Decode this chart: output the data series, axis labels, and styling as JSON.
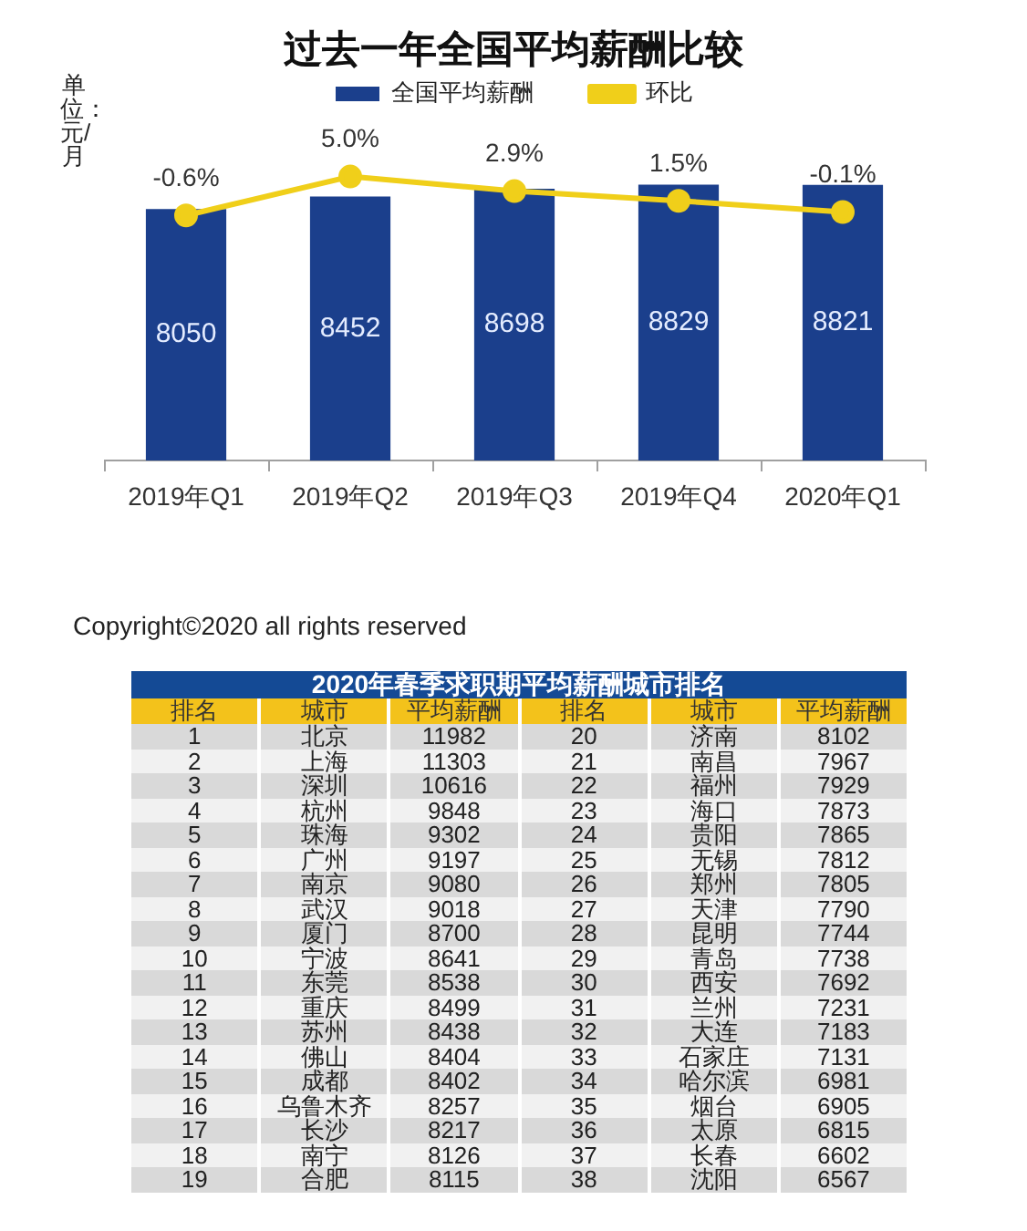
{
  "chart_data": [
    {
      "type": "bar",
      "title": "过去一年全国平均薪酬比较",
      "ylabel": "单位：元/月",
      "categories": [
        "2019年Q1",
        "2019年Q2",
        "2019年Q3",
        "2019年Q4",
        "2020年Q1"
      ],
      "series": [
        {
          "name": "全国平均薪酬",
          "type": "bar",
          "color": "#1b3f8c",
          "values": [
            8050,
            8452,
            8698,
            8829,
            8821
          ],
          "value_labels": [
            "8050",
            "8452",
            "8698",
            "8829",
            "8821"
          ]
        },
        {
          "name": "环比",
          "type": "line",
          "axis": "y2",
          "color": "#f0cf1a",
          "values": [
            -0.6,
            5.0,
            2.9,
            1.5,
            -0.1
          ],
          "value_labels": [
            "-0.6%",
            "5.0%",
            "2.9%",
            "1.5%",
            "-0.1%"
          ]
        }
      ],
      "tick_labels": "x",
      "legend": "top",
      "marker": "circle",
      "annotations": [
        "Copyright©2020 all rights reserved"
      ]
    },
    {
      "type": "heatmap",
      "title": "2020年春季求职期平均薪酬城市排名",
      "ylabel": "排名",
      "categories": [
        "城市",
        "平均薪酬",
        "排名",
        "城市",
        "平均薪酬"
      ],
      "y_categories": [
        "1",
        "2",
        "3",
        "4",
        "5",
        "6",
        "7",
        "8",
        "9",
        "10",
        "11",
        "12",
        "13",
        "14",
        "15",
        "16",
        "17",
        "18",
        "19"
      ],
      "cells": [
        [
          null,
          null,
          null,
          null,
          null
        ],
        [
          null,
          null,
          null,
          null,
          null
        ],
        [
          null,
          null,
          null,
          null,
          null
        ],
        [
          null,
          null,
          null,
          null,
          null
        ],
        [
          null,
          null,
          null,
          null,
          null
        ],
        [
          null,
          null,
          null,
          null,
          null
        ],
        [
          null,
          null,
          null,
          null,
          null
        ],
        [
          null,
          null,
          null,
          null,
          null
        ],
        [
          null,
          null,
          null,
          null,
          null
        ],
        [
          null,
          null,
          null,
          null,
          null
        ],
        [
          null,
          null,
          null,
          null,
          null
        ],
        [
          null,
          null,
          null,
          null,
          null
        ],
        [
          null,
          null,
          null,
          null,
          null
        ],
        [
          null,
          null,
          null,
          null,
          null
        ],
        [
          null,
          null,
          null,
          null,
          null
        ],
        [
          null,
          null,
          null,
          null,
          null
        ],
        [
          null,
          null,
          null,
          null,
          null
        ],
        [
          null,
          null,
          null,
          null,
          null
        ],
        [
          null,
          null,
          null,
          null,
          null
        ]
      ],
      "cell_labels": [
        [
          "北京",
          "11982",
          "20",
          "济南",
          "8102"
        ],
        [
          "上海",
          "11303",
          "21",
          "南昌",
          "7967"
        ],
        [
          "深圳",
          "10616",
          "22",
          "福州",
          "7929"
        ],
        [
          "杭州",
          "9848",
          "23",
          "海口",
          "7873"
        ],
        [
          "珠海",
          "9302",
          "24",
          "贵阳",
          "7865"
        ],
        [
          "广州",
          "9197",
          "25",
          "无锡",
          "7812"
        ],
        [
          "南京",
          "9080",
          "26",
          "郑州",
          "7805"
        ],
        [
          "武汉",
          "9018",
          "27",
          "天津",
          "7790"
        ],
        [
          "厦门",
          "8700",
          "28",
          "昆明",
          "7744"
        ],
        [
          "宁波",
          "8641",
          "29",
          "青岛",
          "7738"
        ],
        [
          "东莞",
          "8538",
          "30",
          "西安",
          "7692"
        ],
        [
          "重庆",
          "8499",
          "31",
          "兰州",
          "7231"
        ],
        [
          "苏州",
          "8438",
          "32",
          "大连",
          "7183"
        ],
        [
          "佛山",
          "8404",
          "33",
          "石家庄",
          "7131"
        ],
        [
          "成都",
          "8402",
          "34",
          "哈尔滨",
          "6981"
        ],
        [
          "乌鲁木齐",
          "8257",
          "35",
          "烟台",
          "6905"
        ],
        [
          "长沙",
          "8217",
          "36",
          "太原",
          "6815"
        ],
        [
          "南宁",
          "8126",
          "37",
          "长春",
          "6602"
        ],
        [
          "合肥",
          "8115",
          "38",
          "沈阳",
          "6567"
        ]
      ]
    }
  ]
}
